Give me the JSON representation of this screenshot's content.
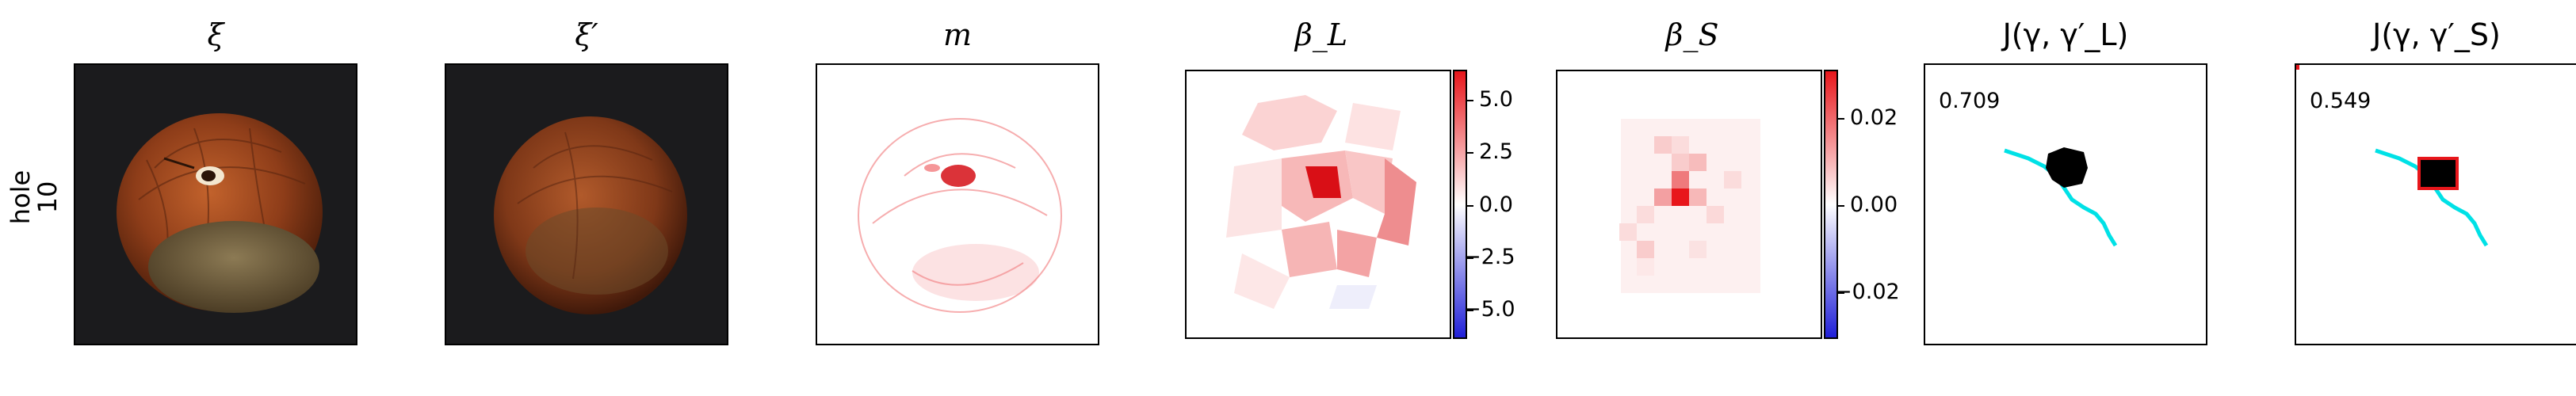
{
  "row_label": {
    "line1": "hole",
    "line2": "10"
  },
  "panels": [
    {
      "title": "ξ"
    },
    {
      "title": "ξ′"
    },
    {
      "title": "m"
    },
    {
      "title": "β_L",
      "colorbar_ticks": [
        "5.0",
        "2.5",
        "0.0",
        "−2.5",
        "−5.0"
      ]
    },
    {
      "title": "β_S",
      "colorbar_ticks": [
        "0.02",
        "0.00",
        "−0.02"
      ]
    },
    {
      "title": "J(γ, γ′_L)",
      "score": "0.709"
    },
    {
      "title": "J(γ, γ′_S)",
      "score": "0.549"
    }
  ],
  "colors": {
    "positive": "#e8161b",
    "negative": "#1f1fd8",
    "mask": "#00e1e6",
    "frame": "#000000"
  }
}
